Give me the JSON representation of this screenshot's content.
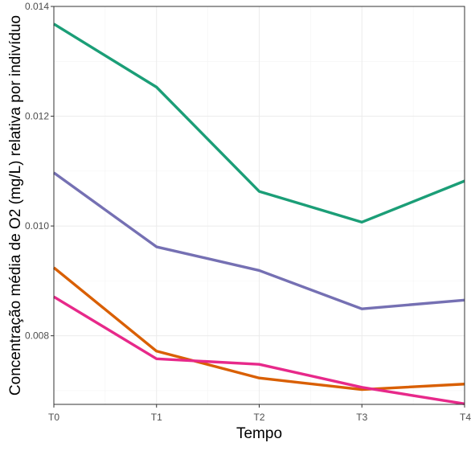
{
  "chart_data": {
    "type": "line",
    "title": "",
    "xlabel": "Tempo",
    "ylabel": "Concentração média de O2 (mg/L) relativa por indivíduo",
    "categories": [
      "T0",
      "T1",
      "T2",
      "T3",
      "T4"
    ],
    "ylim": [
      0.00675,
      0.014
    ],
    "yticks": [
      0.008,
      0.01,
      0.012,
      0.014
    ],
    "ytick_labels": [
      "0.008",
      "0.010",
      "0.012",
      "0.014"
    ],
    "grid": true,
    "legend": "none",
    "series": [
      {
        "values": [
          0.01368,
          0.01253,
          0.01063,
          0.01007,
          0.01082
        ],
        "color": "#1b9e77"
      },
      {
        "values": [
          0.01097,
          0.00962,
          0.00919,
          0.00849,
          0.00865
        ],
        "color": "#7570b3"
      },
      {
        "values": [
          0.00924,
          0.00772,
          0.00723,
          0.00702,
          0.00712
        ],
        "color": "#d95f02"
      },
      {
        "values": [
          0.00871,
          0.00758,
          0.00748,
          0.00706,
          0.00676
        ],
        "color": "#e7298a"
      }
    ]
  }
}
